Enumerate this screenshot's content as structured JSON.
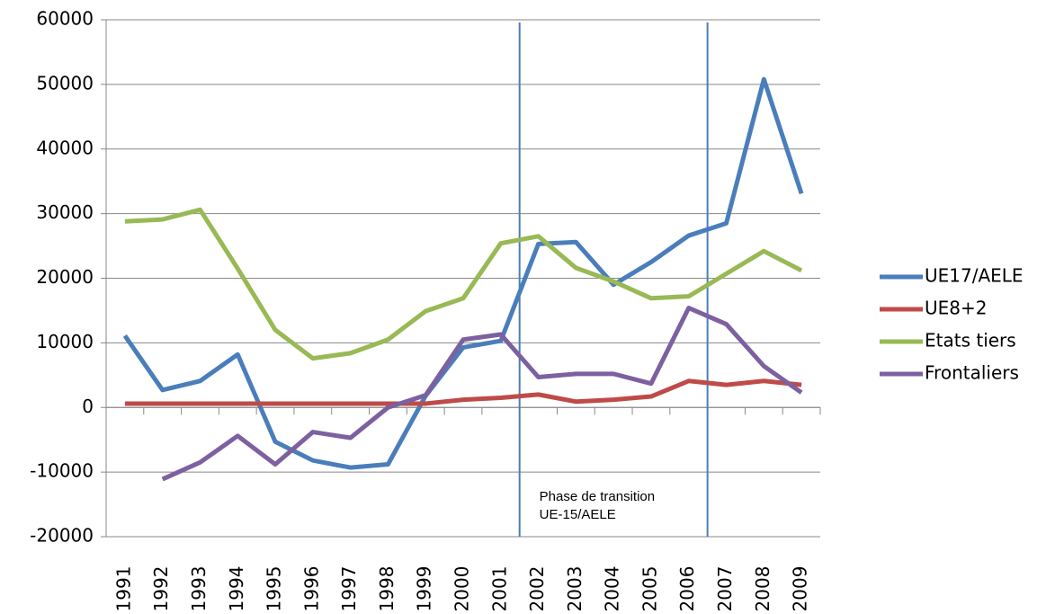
{
  "chart_data": {
    "type": "line",
    "categories": [
      "1991",
      "1992",
      "1993",
      "1994",
      "1995",
      "1996",
      "1997",
      "1998",
      "1999",
      "2000",
      "2001",
      "2002",
      "2003",
      "2004",
      "2005",
      "2006",
      "2007",
      "2008",
      "2009"
    ],
    "series": [
      {
        "name": "UE17/AELE",
        "color": "#4a7ebb",
        "values": [
          11100,
          2700,
          4100,
          8200,
          -5300,
          -8200,
          -9300,
          -8800,
          1800,
          9300,
          10300,
          25300,
          25600,
          19000,
          22500,
          26600,
          28500,
          50800,
          33100
        ]
      },
      {
        "name": "UE8+2",
        "color": "#be4b48",
        "values": [
          600,
          600,
          600,
          600,
          600,
          600,
          600,
          600,
          600,
          1200,
          1500,
          2000,
          900,
          1200,
          1700,
          4100,
          3500,
          4100,
          3500
        ]
      },
      {
        "name": "Etats tiers",
        "color": "#98b954",
        "values": [
          28800,
          29100,
          30600,
          21500,
          12000,
          7600,
          8400,
          10500,
          14900,
          16900,
          25400,
          26500,
          21600,
          19500,
          16900,
          17200,
          20700,
          24200,
          21200
        ]
      },
      {
        "name": "Frontaliers",
        "color": "#7d60a0",
        "values": [
          null,
          -11100,
          -8500,
          -4400,
          -8800,
          -3800,
          -4700,
          0,
          1900,
          10500,
          11300,
          4700,
          5200,
          5200,
          3700,
          15400,
          12900,
          6400,
          2300
        ]
      }
    ],
    "ylim": [
      -20000,
      60000
    ],
    "yticks": [
      -20000,
      -10000,
      0,
      10000,
      20000,
      30000,
      40000,
      50000,
      60000
    ],
    "grid": true,
    "legend": "right",
    "annotation": [
      "Phase de transition",
      "UE-15/AELE"
    ]
  }
}
